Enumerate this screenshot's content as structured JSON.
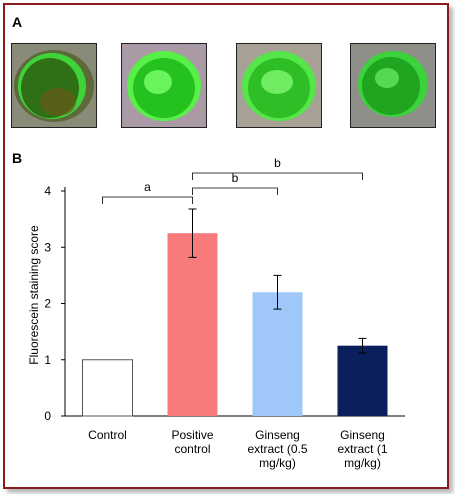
{
  "panel_a_label": "A",
  "panel_b_label": "B",
  "photos": [
    {
      "name": "control-eye-photo",
      "tint": "#2f6f15",
      "ring": "#3fd33a"
    },
    {
      "name": "positive-control-eye-photo",
      "tint": "#25c21f",
      "ring": "#58f048"
    },
    {
      "name": "ginseng-05-eye-photo",
      "tint": "#2dbf25",
      "ring": "#55e64a"
    },
    {
      "name": "ginseng-1-eye-photo",
      "tint": "#1fa51f",
      "ring": "#3bd23b"
    }
  ],
  "chart_data": {
    "type": "bar",
    "ylabel": "Fluorescein staining score",
    "ylim": [
      0,
      4
    ],
    "yticks": [
      "0",
      "1",
      "2",
      "3",
      "4"
    ],
    "categories": [
      {
        "line1": "Control",
        "line2": "",
        "line3": ""
      },
      {
        "line1": "Positive",
        "line2": "control",
        "line3": ""
      },
      {
        "line1": "Ginseng",
        "line2": "extract (0.5",
        "line3": "mg/kg)"
      },
      {
        "line1": "Ginseng",
        "line2": "extract (1",
        "line3": "mg/kg)"
      }
    ],
    "values": [
      1.0,
      3.25,
      2.2,
      1.25
    ],
    "errors": [
      0,
      0.43,
      0.3,
      0.13
    ],
    "colors": [
      "#ffffff",
      "#f77b7b",
      "#9fc7f7",
      "#0a1f5c"
    ],
    "significance": [
      {
        "from": 0,
        "to": 1,
        "label": "a"
      },
      {
        "from": 1,
        "to": 2,
        "label": "b"
      },
      {
        "from": 1,
        "to": 3,
        "label": "b"
      }
    ]
  }
}
